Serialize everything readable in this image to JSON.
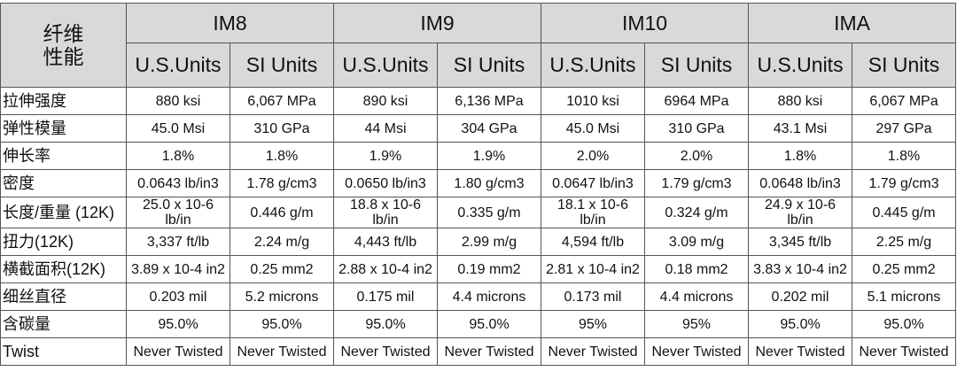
{
  "table": {
    "property_label": [
      "纤维",
      "性能"
    ],
    "fibers": [
      {
        "name": "IM8",
        "units": [
          "U.S.Units",
          "SI Units"
        ]
      },
      {
        "name": "IM9",
        "units": [
          "U.S.Units",
          "SI Units"
        ]
      },
      {
        "name": "IM10",
        "units": [
          "U.S.Units",
          "SI Units"
        ]
      },
      {
        "name": "IMA",
        "units": [
          "U.S.Units",
          "SI Units"
        ]
      }
    ],
    "rows": [
      {
        "label": "拉伸强度",
        "cells": [
          "880 ksi",
          "6,067 MPa",
          "890 ksi",
          "6,136 MPa",
          "1010 ksi",
          "6964 MPa",
          "880 ksi",
          "6,067 MPa"
        ]
      },
      {
        "label": "弹性模量",
        "cells": [
          "45.0 Msi",
          "310 GPa",
          "44 Msi",
          "304 GPa",
          "45.0 Msi",
          "310 GPa",
          "43.1 Msi",
          "297 GPa"
        ]
      },
      {
        "label": "伸长率",
        "cells": [
          "1.8%",
          "1.8%",
          "1.9%",
          "1.9%",
          "2.0%",
          "2.0%",
          "1.8%",
          "1.8%"
        ]
      },
      {
        "label": "密度",
        "cells": [
          "0.0643 lb/in3",
          "1.78 g/cm3",
          "0.0650 lb/in3",
          "1.80 g/cm3",
          "0.0647 lb/in3",
          "1.79 g/cm3",
          "0.0648 lb/in3",
          "1.79 g/cm3"
        ]
      },
      {
        "label": "长度/重量 (12K)",
        "cells": [
          "25.0 x 10-6 lb/in",
          "0.446 g/m",
          "18.8 x 10-6 lb/in",
          "0.335 g/m",
          "18.1 x 10-6 lb/in",
          "0.324 g/m",
          "24.9 x 10-6 lb/in",
          "0.445 g/m"
        ]
      },
      {
        "label": "扭力(12K)",
        "cells": [
          "3,337 ft/lb",
          "2.24 m/g",
          "4,443 ft/lb",
          "2.99 m/g",
          "4,594 ft/lb",
          "3.09 m/g",
          "3,345 ft/lb",
          "2.25 m/g"
        ]
      },
      {
        "label": "横截面积(12K)",
        "cells": [
          "3.89 x 10-4 in2",
          "0.25 mm2",
          "2.88 x 10-4 in2",
          "0.19 mm2",
          "2.81 x 10-4 in2",
          "0.18 mm2",
          "3.83 x 10-4 in2",
          "0.25 mm2"
        ]
      },
      {
        "label": "细丝直径",
        "cells": [
          "0.203 mil",
          "5.2 microns",
          "0.175 mil",
          "4.4 microns",
          "0.173 mil",
          "4.4 microns",
          "0.202 mil",
          "5.1 microns"
        ]
      },
      {
        "label": "含碳量",
        "cells": [
          "95.0%",
          "95.0%",
          "95.0%",
          "95.0%",
          "95%",
          "95%",
          "95.0%",
          "95.0%"
        ]
      },
      {
        "label": "Twist",
        "cells": [
          "Never Twisted",
          "Never Twisted",
          "Never Twisted",
          "Never Twisted",
          "Never Twisted",
          "Never Twisted",
          "Never Twisted",
          "Never Twisted"
        ]
      }
    ]
  }
}
